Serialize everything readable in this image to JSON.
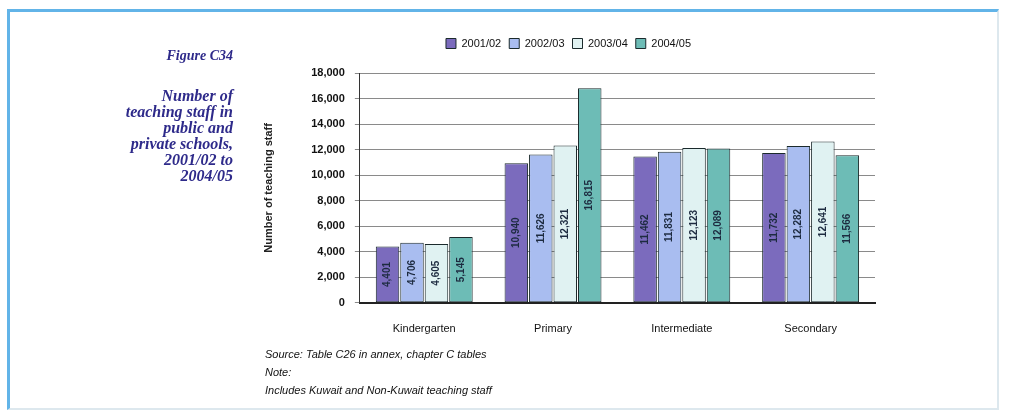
{
  "chart_data": {
    "type": "bar",
    "title": "Figure C34",
    "subtitle": "Number of teaching staff in public and private schools, 2001/02 to 2004/05",
    "ylabel": "Number of teaching staff",
    "categories": [
      "Kindergarten",
      "Primary",
      "Intermediate",
      "Secondary"
    ],
    "series": [
      {
        "name": "2001/02",
        "color": "#7b6bbd",
        "values": [
          4401,
          10940,
          11462,
          11732
        ],
        "value_labels": [
          "4,401",
          "10,940",
          "11,462",
          "11,732"
        ]
      },
      {
        "name": "2002/03",
        "color": "#a9bdf0",
        "values": [
          4706,
          11626,
          11831,
          12282
        ],
        "value_labels": [
          "4,706",
          "11,626",
          "11,831",
          "12,282"
        ]
      },
      {
        "name": "2003/04",
        "color": "#e0f2f2",
        "values": [
          4605,
          12321,
          12123,
          12641
        ],
        "value_labels": [
          "4,605",
          "12,321",
          "12,123",
          "12,641"
        ]
      },
      {
        "name": "2004/05",
        "color": "#6dbcb6",
        "values": [
          5145,
          16815,
          12089,
          11566
        ],
        "value_labels": [
          "5,145",
          "16,815",
          "12,089",
          "11,566"
        ]
      }
    ],
    "ylim": [
      0,
      18000
    ],
    "yticks": [
      0,
      {
        "value": 2000,
        "label": "2,000"
      },
      {
        "value": 4000,
        "label": "4,000"
      },
      {
        "value": 6000,
        "label": "6,000"
      },
      {
        "value": 8000,
        "label": "8,000"
      },
      {
        "value": 10000,
        "label": "10,000"
      },
      {
        "value": 12000,
        "label": "12,000"
      },
      {
        "value": 14000,
        "label": "14,000"
      },
      {
        "value": 16000,
        "label": "16,000"
      },
      {
        "value": 18000,
        "label": "18,000"
      }
    ],
    "grid": "y",
    "legend": "top",
    "annotations": [
      "Source: Table C26 in annex, chapter C tables",
      "Note:",
      "Includes Kuwait and Non-Kuwait teaching staff"
    ]
  }
}
